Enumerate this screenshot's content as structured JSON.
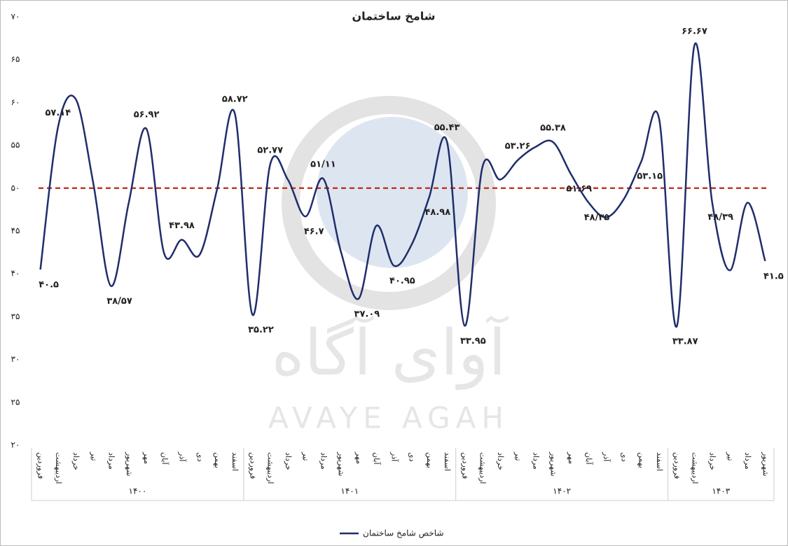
{
  "chart_data": {
    "type": "line",
    "title": "شامخ ساختمان",
    "groups": [
      {
        "name": "۱۴۰۰",
        "categories": [
          "فروردین",
          "اردیبهشت",
          "خرداد",
          "تیر",
          "مرداد",
          "شهریور",
          "مهر",
          "آبان",
          "آذر",
          "دی",
          "بهمن",
          "اسفند"
        ]
      },
      {
        "name": "۱۴۰۱",
        "categories": [
          "فروردین",
          "اردیبهشت",
          "خرداد",
          "تیر",
          "مرداد",
          "شهریور",
          "مهر",
          "آبان",
          "آذر",
          "دی",
          "بهمن",
          "اسفند"
        ]
      },
      {
        "name": "۱۴۰۲",
        "categories": [
          "فروردین",
          "اردیبهشت",
          "خرداد",
          "تیر",
          "مرداد",
          "شهریور",
          "مهر",
          "آبان",
          "آذر",
          "دی",
          "بهمن",
          "اسفند"
        ]
      },
      {
        "name": "۱۴۰۳",
        "categories": [
          "فروردین",
          "اردیبهشت",
          "خرداد",
          "تیر",
          "مرداد",
          "شهریور"
        ]
      }
    ],
    "series": [
      {
        "name": "شاخص شامخ ساختمان",
        "color": "#1f2d6b",
        "values": [
          40.5,
          57.14,
          60.4,
          50.5,
          38.57,
          48.3,
          56.92,
          42.4,
          43.98,
          42.2,
          49.9,
          58.72,
          35.22,
          52.77,
          51,
          46.7,
          51.11,
          42.6,
          37.09,
          45.6,
          40.95,
          43.4,
          48.98,
          55.43,
          33.95,
          52.4,
          51,
          53.26,
          54.8,
          55.38,
          51.69,
          48.35,
          46.6,
          48.7,
          53.15,
          58.1,
          33.87,
          66.67,
          48.39,
          40.4,
          48.3,
          41.5
        ],
        "value_labels": [
          "۴۰.۵",
          "۵۷.۱۴",
          null,
          null,
          "۳۸/۵۷",
          null,
          "۵۶.۹۲",
          null,
          "۴۳.۹۸",
          null,
          null,
          "۵۸.۷۲",
          "۳۵.۲۲",
          "۵۲.۷۷",
          null,
          "۴۶.۷",
          "۵۱/۱۱",
          null,
          "۳۷.۰۹",
          null,
          "۴۰.۹۵",
          null,
          "۴۸.۹۸",
          "۵۵.۴۳",
          "۳۳.۹۵",
          null,
          null,
          "۵۳.۲۶",
          null,
          "۵۵.۳۸",
          "۵۱.۶۹",
          "۴۸/۳۵",
          null,
          null,
          "۵۳.۱۵",
          null,
          "۳۳.۸۷",
          "۶۶.۶۷",
          "۴۸/۳۹",
          null,
          null,
          "۴۱.۵"
        ]
      }
    ],
    "reference_line": {
      "value": 50,
      "color": "#c0392b"
    },
    "ylim": [
      20,
      70
    ],
    "yticks": [
      {
        "value": 20,
        "label": "۲۰"
      },
      {
        "value": 25,
        "label": "۲۵"
      },
      {
        "value": 30,
        "label": "۳۰"
      },
      {
        "value": 35,
        "label": "۳۵"
      },
      {
        "value": 40,
        "label": "۴۰"
      },
      {
        "value": 45,
        "label": "۴۵"
      },
      {
        "value": 50,
        "label": "۵۰"
      },
      {
        "value": 55,
        "label": "۵۵"
      },
      {
        "value": 60,
        "label": "۶۰"
      },
      {
        "value": 65,
        "label": "۶۵"
      },
      {
        "value": 70,
        "label": "۷۰"
      }
    ],
    "watermark": {
      "text_fa": "آوای آگاه",
      "text_en": "AVAYE AGAH"
    }
  }
}
